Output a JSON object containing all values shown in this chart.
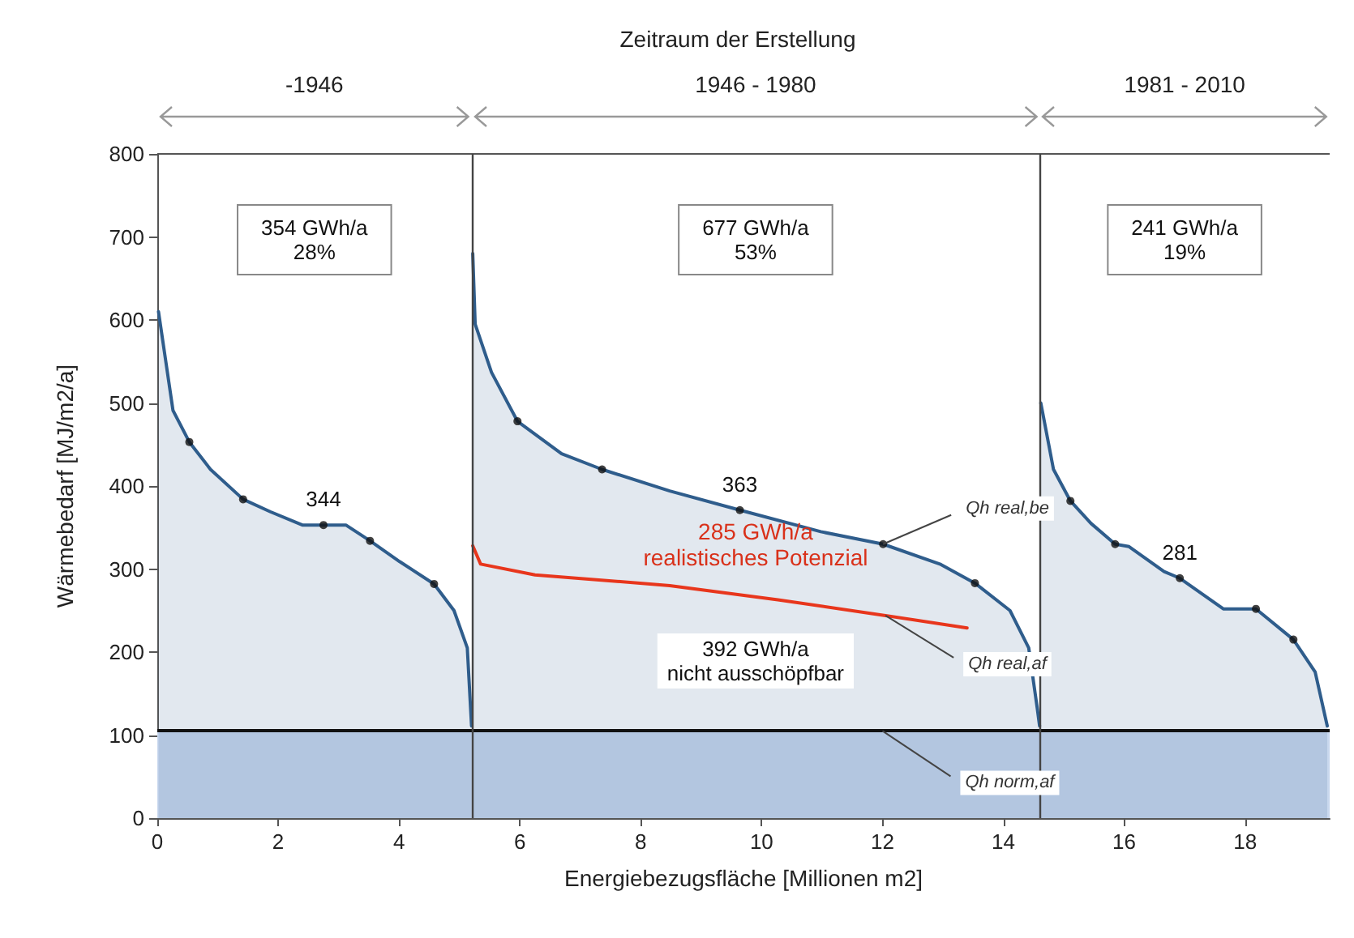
{
  "chart_data": {
    "type": "area",
    "title": "Zeitraum der Erstellung",
    "xlabel": "Energiebezugsfläche [Millionen m2]",
    "ylabel": "Wärmebedarf [MJ/m2/a]",
    "xlim": [
      0,
      19.4
    ],
    "xticks": [
      0,
      2,
      4,
      6,
      8,
      10,
      12,
      14,
      16,
      18
    ],
    "ylim": [
      0,
      800
    ],
    "yticks": [
      0,
      100,
      200,
      300,
      400,
      500,
      600,
      700,
      800
    ],
    "series": [
      {
        "color": "#2f5d8c",
        "x": [
          0.02,
          0.26,
          0.53,
          0.88,
          1.42,
          1.87,
          2.4,
          3.12,
          3.52,
          4.01,
          4.58,
          4.91,
          5.13,
          5.2
        ],
        "values": [
          610,
          491,
          453,
          420,
          384,
          369,
          353,
          353,
          334,
          309,
          282,
          250,
          205,
          111
        ]
      },
      {
        "color": "#2f5d8c",
        "x": [
          5.22,
          5.26,
          5.53,
          5.96,
          6.69,
          7.36,
          8.48,
          9.64,
          10.98,
          12.01,
          12.95,
          13.53,
          14.11,
          14.42,
          14.56,
          14.6
        ],
        "values": [
          680,
          595,
          537,
          478,
          439,
          420,
          394,
          371,
          345,
          330,
          306,
          283,
          250,
          205,
          133,
          111
        ]
      },
      {
        "color": "#2f5d8c",
        "x": [
          14.62,
          14.83,
          15.11,
          15.45,
          15.85,
          16.08,
          16.66,
          16.92,
          17.64,
          18.18,
          18.8,
          19.16,
          19.36
        ],
        "values": [
          500,
          420,
          382,
          355,
          330,
          327,
          297,
          289,
          252,
          252,
          215,
          176,
          111
        ]
      },
      {
        "type": "line",
        "color": "#e8361c",
        "x": [
          5.22,
          5.35,
          6.25,
          8.48,
          10.27,
          12.05,
          13.4
        ],
        "values": [
          328,
          306,
          293,
          280,
          263,
          244,
          229
        ]
      },
      {
        "type": "scatter",
        "color": "#111111",
        "x": [
          0.53,
          1.42,
          2.75,
          3.52,
          4.58,
          5.96,
          7.36,
          9.64,
          12.01,
          13.53,
          15.11,
          15.85,
          16.92,
          18.18,
          18.8
        ],
        "values": [
          453,
          384,
          353,
          334,
          282,
          478,
          420,
          371,
          330,
          283,
          382,
          330,
          289,
          252,
          215
        ]
      }
    ],
    "ref_lines": [
      {
        "axis": "y",
        "value": 105,
        "color": "#111111"
      },
      {
        "axis": "x",
        "value": 5.2,
        "color": "#444444"
      },
      {
        "axis": "x",
        "value": 14.6,
        "color": "#444444"
      }
    ],
    "bands": [
      {
        "axis": "y",
        "from": 0,
        "to": 105,
        "color": "#c9d8ee"
      }
    ],
    "annotations": [
      "-1946",
      "1946 - 1980",
      "1981 - 2010",
      "354 GWh/a\n28%",
      "677 GWh/a\n53%",
      "241 GWh/a\n19%",
      {
        "text": "344",
        "x": 2.75,
        "y": 353
      },
      {
        "text": "363",
        "x": 9.64,
        "y": 371
      },
      {
        "text": "281",
        "x": 16.92,
        "y": 289
      },
      "285 GWh/a\nrealistisches Potenzial",
      "392 GWh/a\nnicht ausschöpfbar",
      {
        "text": "Qh real,be",
        "x": 12.01,
        "y": 330
      },
      {
        "text": "Qh real,af",
        "x": 12.05,
        "y": 244
      },
      {
        "text": "Qh norm,af",
        "x": 12.0,
        "y": 105
      }
    ]
  }
}
